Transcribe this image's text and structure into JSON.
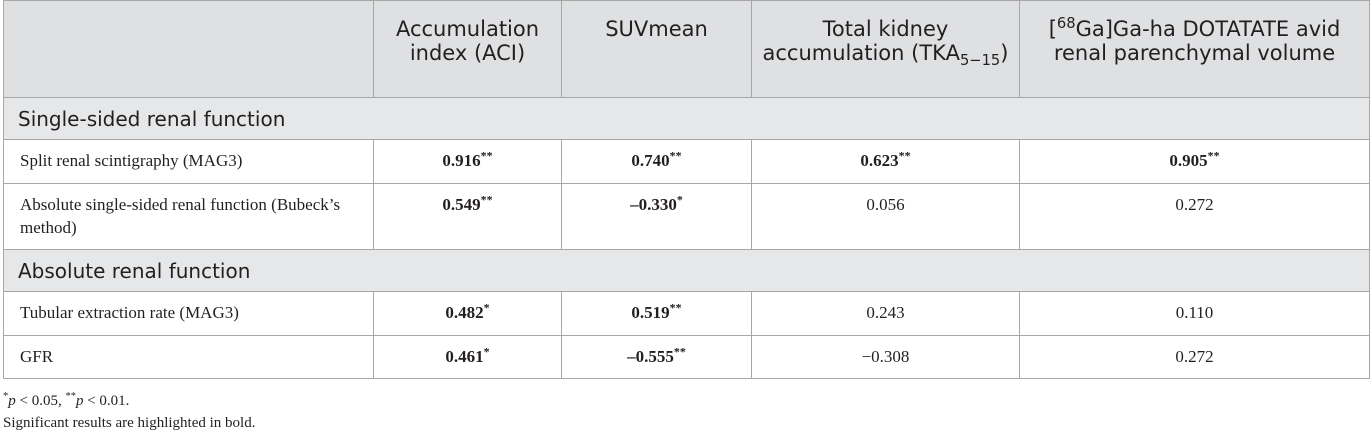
{
  "table": {
    "headers": {
      "col1": "Accumulation index (ACI)",
      "col2": "SUVmean",
      "col3_main": "Total kidney accumulation (TKA",
      "col3_sub": "5−15",
      "col3_end": ")",
      "col4_sup": "68",
      "col4_text": "Ga]Ga-ha DOTATATE avid renal parenchymal volume",
      "col4_open": "["
    },
    "sections": [
      {
        "title": "Single-sided renal function",
        "rows": [
          {
            "label": "Split renal scintigraphy (MAG3)",
            "values": [
              "0.916",
              "0.740",
              "0.623",
              "0.905"
            ],
            "marks": [
              "**",
              "**",
              "**",
              "**"
            ],
            "bold": [
              true,
              true,
              true,
              true
            ]
          },
          {
            "label": "Absolute single-sided renal function (Bubeck’s method)",
            "values": [
              "0.549",
              "–0.330",
              "0.056",
              "0.272"
            ],
            "marks": [
              "**",
              "*",
              "",
              ""
            ],
            "bold": [
              true,
              true,
              false,
              false
            ]
          }
        ]
      },
      {
        "title": "Absolute renal function",
        "rows": [
          {
            "label": "Tubular extraction rate (MAG3)",
            "values": [
              "0.482",
              "0.519",
              "0.243",
              "0.110"
            ],
            "marks": [
              "*",
              "**",
              "",
              ""
            ],
            "bold": [
              true,
              true,
              false,
              false
            ]
          },
          {
            "label": "GFR",
            "values": [
              "0.461",
              "–0.555",
              "−0.308",
              "0.272"
            ],
            "marks": [
              "*",
              "**",
              "",
              ""
            ],
            "bold": [
              true,
              true,
              false,
              false
            ]
          }
        ]
      }
    ]
  },
  "footnotes": {
    "line1_star1": "*",
    "line1_p1": "p",
    "line1_lt1": " < 0.05, ",
    "line1_star2": "**",
    "line1_p2": "p",
    "line1_lt2": " < 0.01.",
    "line2": "Significant results are highlighted in bold."
  }
}
